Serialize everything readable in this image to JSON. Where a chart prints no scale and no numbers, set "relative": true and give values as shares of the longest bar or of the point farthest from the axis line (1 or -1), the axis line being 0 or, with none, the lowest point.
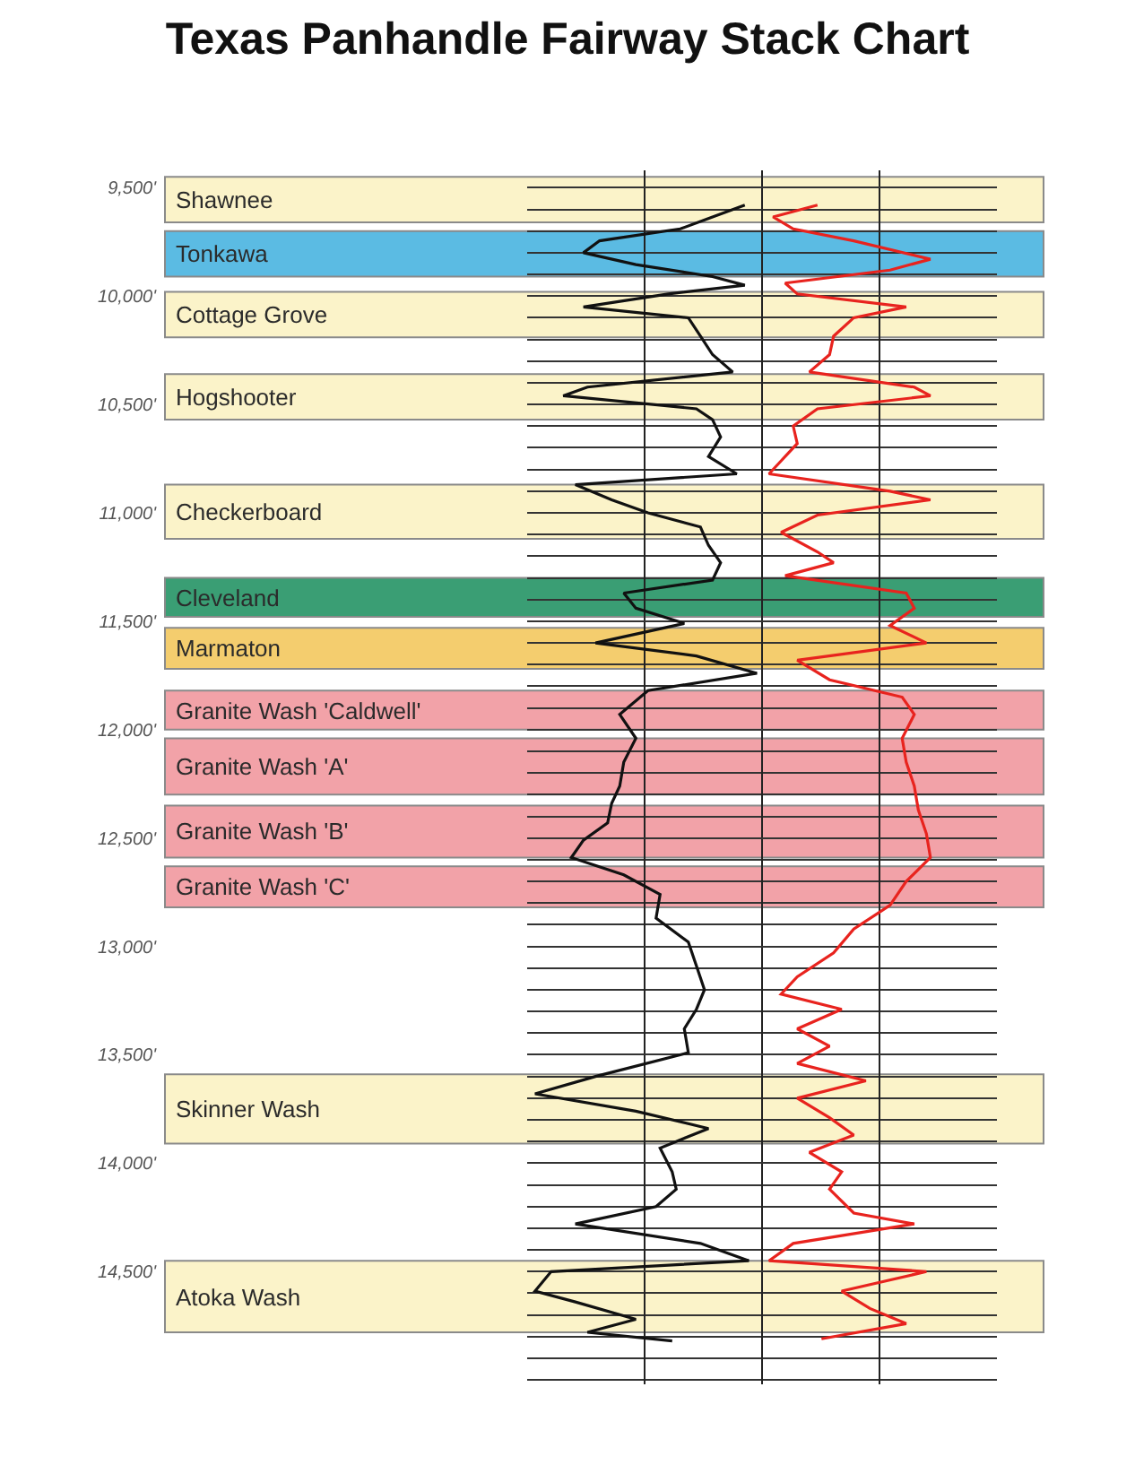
{
  "chart_data": {
    "type": "line",
    "title": "Texas Panhandle Fairway Stack Chart",
    "orientation": "horizontal",
    "relative": true,
    "grid": true,
    "tick_labels": "y",
    "marker": "none",
    "line_style": "solid",
    "ylim": [
      15020,
      9420
    ],
    "yticks": [
      {
        "value": 9500,
        "label": "9,500'"
      },
      {
        "value": 10000,
        "label": "10,000'"
      },
      {
        "value": 10500,
        "label": "10,500'"
      },
      {
        "value": 11000,
        "label": "11,000'"
      },
      {
        "value": 11500,
        "label": "11,500'"
      },
      {
        "value": 12000,
        "label": "12,000'"
      },
      {
        "value": 12500,
        "label": "12,500'"
      },
      {
        "value": 13000,
        "label": "13,000'"
      },
      {
        "value": 13500,
        "label": "13,500'"
      },
      {
        "value": 14000,
        "label": "14,000'"
      },
      {
        "value": 14500,
        "label": "14,500'"
      }
    ],
    "bands": [
      {
        "axis": "y",
        "from": 9450,
        "to": 9660,
        "label": "Shawnee",
        "color": "#fbf3c9"
      },
      {
        "axis": "y",
        "from": 9700,
        "to": 9910,
        "label": "Tonkawa",
        "color": "#5bbbe3"
      },
      {
        "axis": "y",
        "from": 9980,
        "to": 10190,
        "label": "Cottage Grove",
        "color": "#fbf3c9"
      },
      {
        "axis": "y",
        "from": 10360,
        "to": 10570,
        "label": "Hogshooter",
        "color": "#fbf3c9"
      },
      {
        "axis": "y",
        "from": 10870,
        "to": 11120,
        "label": "Checkerboard",
        "color": "#fbf3c9"
      },
      {
        "axis": "y",
        "from": 11300,
        "to": 11480,
        "label": "Cleveland",
        "color": "#3a9e74"
      },
      {
        "axis": "y",
        "from": 11530,
        "to": 11720,
        "label": "Marmaton",
        "color": "#f4cd6e"
      },
      {
        "axis": "y",
        "from": 11820,
        "to": 12000,
        "label": "Granite Wash 'Caldwell'",
        "color": "#f2a2a8"
      },
      {
        "axis": "y",
        "from": 12040,
        "to": 12300,
        "label": "Granite Wash 'A'",
        "color": "#f2a2a8"
      },
      {
        "axis": "y",
        "from": 12350,
        "to": 12590,
        "label": "Granite Wash 'B'",
        "color": "#f2a2a8"
      },
      {
        "axis": "y",
        "from": 12630,
        "to": 12820,
        "label": "Granite Wash 'C'",
        "color": "#f2a2a8"
      },
      {
        "axis": "y",
        "from": 13590,
        "to": 13910,
        "label": "Skinner Wash",
        "color": "#fbf3c9"
      },
      {
        "axis": "y",
        "from": 14450,
        "to": 14780,
        "label": "Atoka Wash",
        "color": "#fbf3c9"
      }
    ],
    "series": [
      {
        "color": "#111111",
        "x": [
          9580,
          9635,
          9690,
          9745,
          9800,
          9855,
          9910,
          9950,
          9990,
          10050,
          10100,
          10185,
          10270,
          10350,
          10420,
          10460,
          10520,
          10570,
          10650,
          10740,
          10820,
          10870,
          10940,
          11000,
          11065,
          11150,
          11230,
          11310,
          11370,
          11440,
          11510,
          11600,
          11660,
          11740,
          11820,
          11930,
          12040,
          12150,
          12260,
          12340,
          12430,
          12510,
          12590,
          12670,
          12760,
          12870,
          12980,
          13090,
          13200,
          13290,
          13380,
          13490,
          13600,
          13680,
          13760,
          13840,
          13930,
          14040,
          14120,
          14200,
          14280,
          14370,
          14450,
          14500,
          14590,
          14640,
          14720,
          14780,
          14820
        ],
        "values": [
          0.54,
          0.46,
          0.38,
          0.18,
          0.14,
          0.27,
          0.46,
          0.54,
          0.35,
          0.14,
          0.4,
          0.43,
          0.46,
          0.51,
          0.15,
          0.09,
          0.42,
          0.46,
          0.48,
          0.45,
          0.52,
          0.12,
          0.21,
          0.3,
          0.43,
          0.45,
          0.48,
          0.46,
          0.24,
          0.27,
          0.39,
          0.17,
          0.42,
          0.57,
          0.3,
          0.23,
          0.27,
          0.24,
          0.23,
          0.21,
          0.2,
          0.14,
          0.11,
          0.24,
          0.33,
          0.32,
          0.4,
          0.42,
          0.44,
          0.42,
          0.39,
          0.4,
          0.17,
          0.02,
          0.27,
          0.45,
          0.33,
          0.36,
          0.37,
          0.32,
          0.12,
          0.43,
          0.55,
          0.06,
          0.02,
          0.12,
          0.27,
          0.15,
          0.36
        ]
      },
      {
        "color": "#e8231e",
        "x": [
          9580,
          9635,
          9690,
          9745,
          9830,
          9880,
          9940,
          9990,
          10050,
          10100,
          10185,
          10270,
          10350,
          10420,
          10460,
          10520,
          10600,
          10680,
          10760,
          10820,
          10900,
          10940,
          11010,
          11090,
          11180,
          11230,
          11290,
          11370,
          11440,
          11520,
          11600,
          11680,
          11770,
          11850,
          11930,
          12040,
          12150,
          12260,
          12370,
          12480,
          12590,
          12700,
          12810,
          12920,
          13030,
          13140,
          13220,
          13290,
          13380,
          13460,
          13540,
          13620,
          13700,
          13790,
          13870,
          13950,
          14040,
          14120,
          14230,
          14280,
          14370,
          14450,
          14500,
          14590,
          14670,
          14740,
          14810
        ],
        "values": [
          0.72,
          0.61,
          0.66,
          0.81,
          1.0,
          0.9,
          0.64,
          0.67,
          0.94,
          0.81,
          0.76,
          0.75,
          0.7,
          0.96,
          1.0,
          0.72,
          0.66,
          0.67,
          0.63,
          0.6,
          0.9,
          1.0,
          0.72,
          0.63,
          0.72,
          0.76,
          0.64,
          0.94,
          0.96,
          0.9,
          0.99,
          0.67,
          0.75,
          0.93,
          0.96,
          0.93,
          0.94,
          0.96,
          0.97,
          0.99,
          1.0,
          0.94,
          0.9,
          0.81,
          0.76,
          0.67,
          0.63,
          0.78,
          0.67,
          0.75,
          0.67,
          0.84,
          0.67,
          0.75,
          0.81,
          0.7,
          0.78,
          0.75,
          0.81,
          0.96,
          0.66,
          0.6,
          0.99,
          0.78,
          0.85,
          0.94,
          0.73
        ]
      }
    ]
  }
}
